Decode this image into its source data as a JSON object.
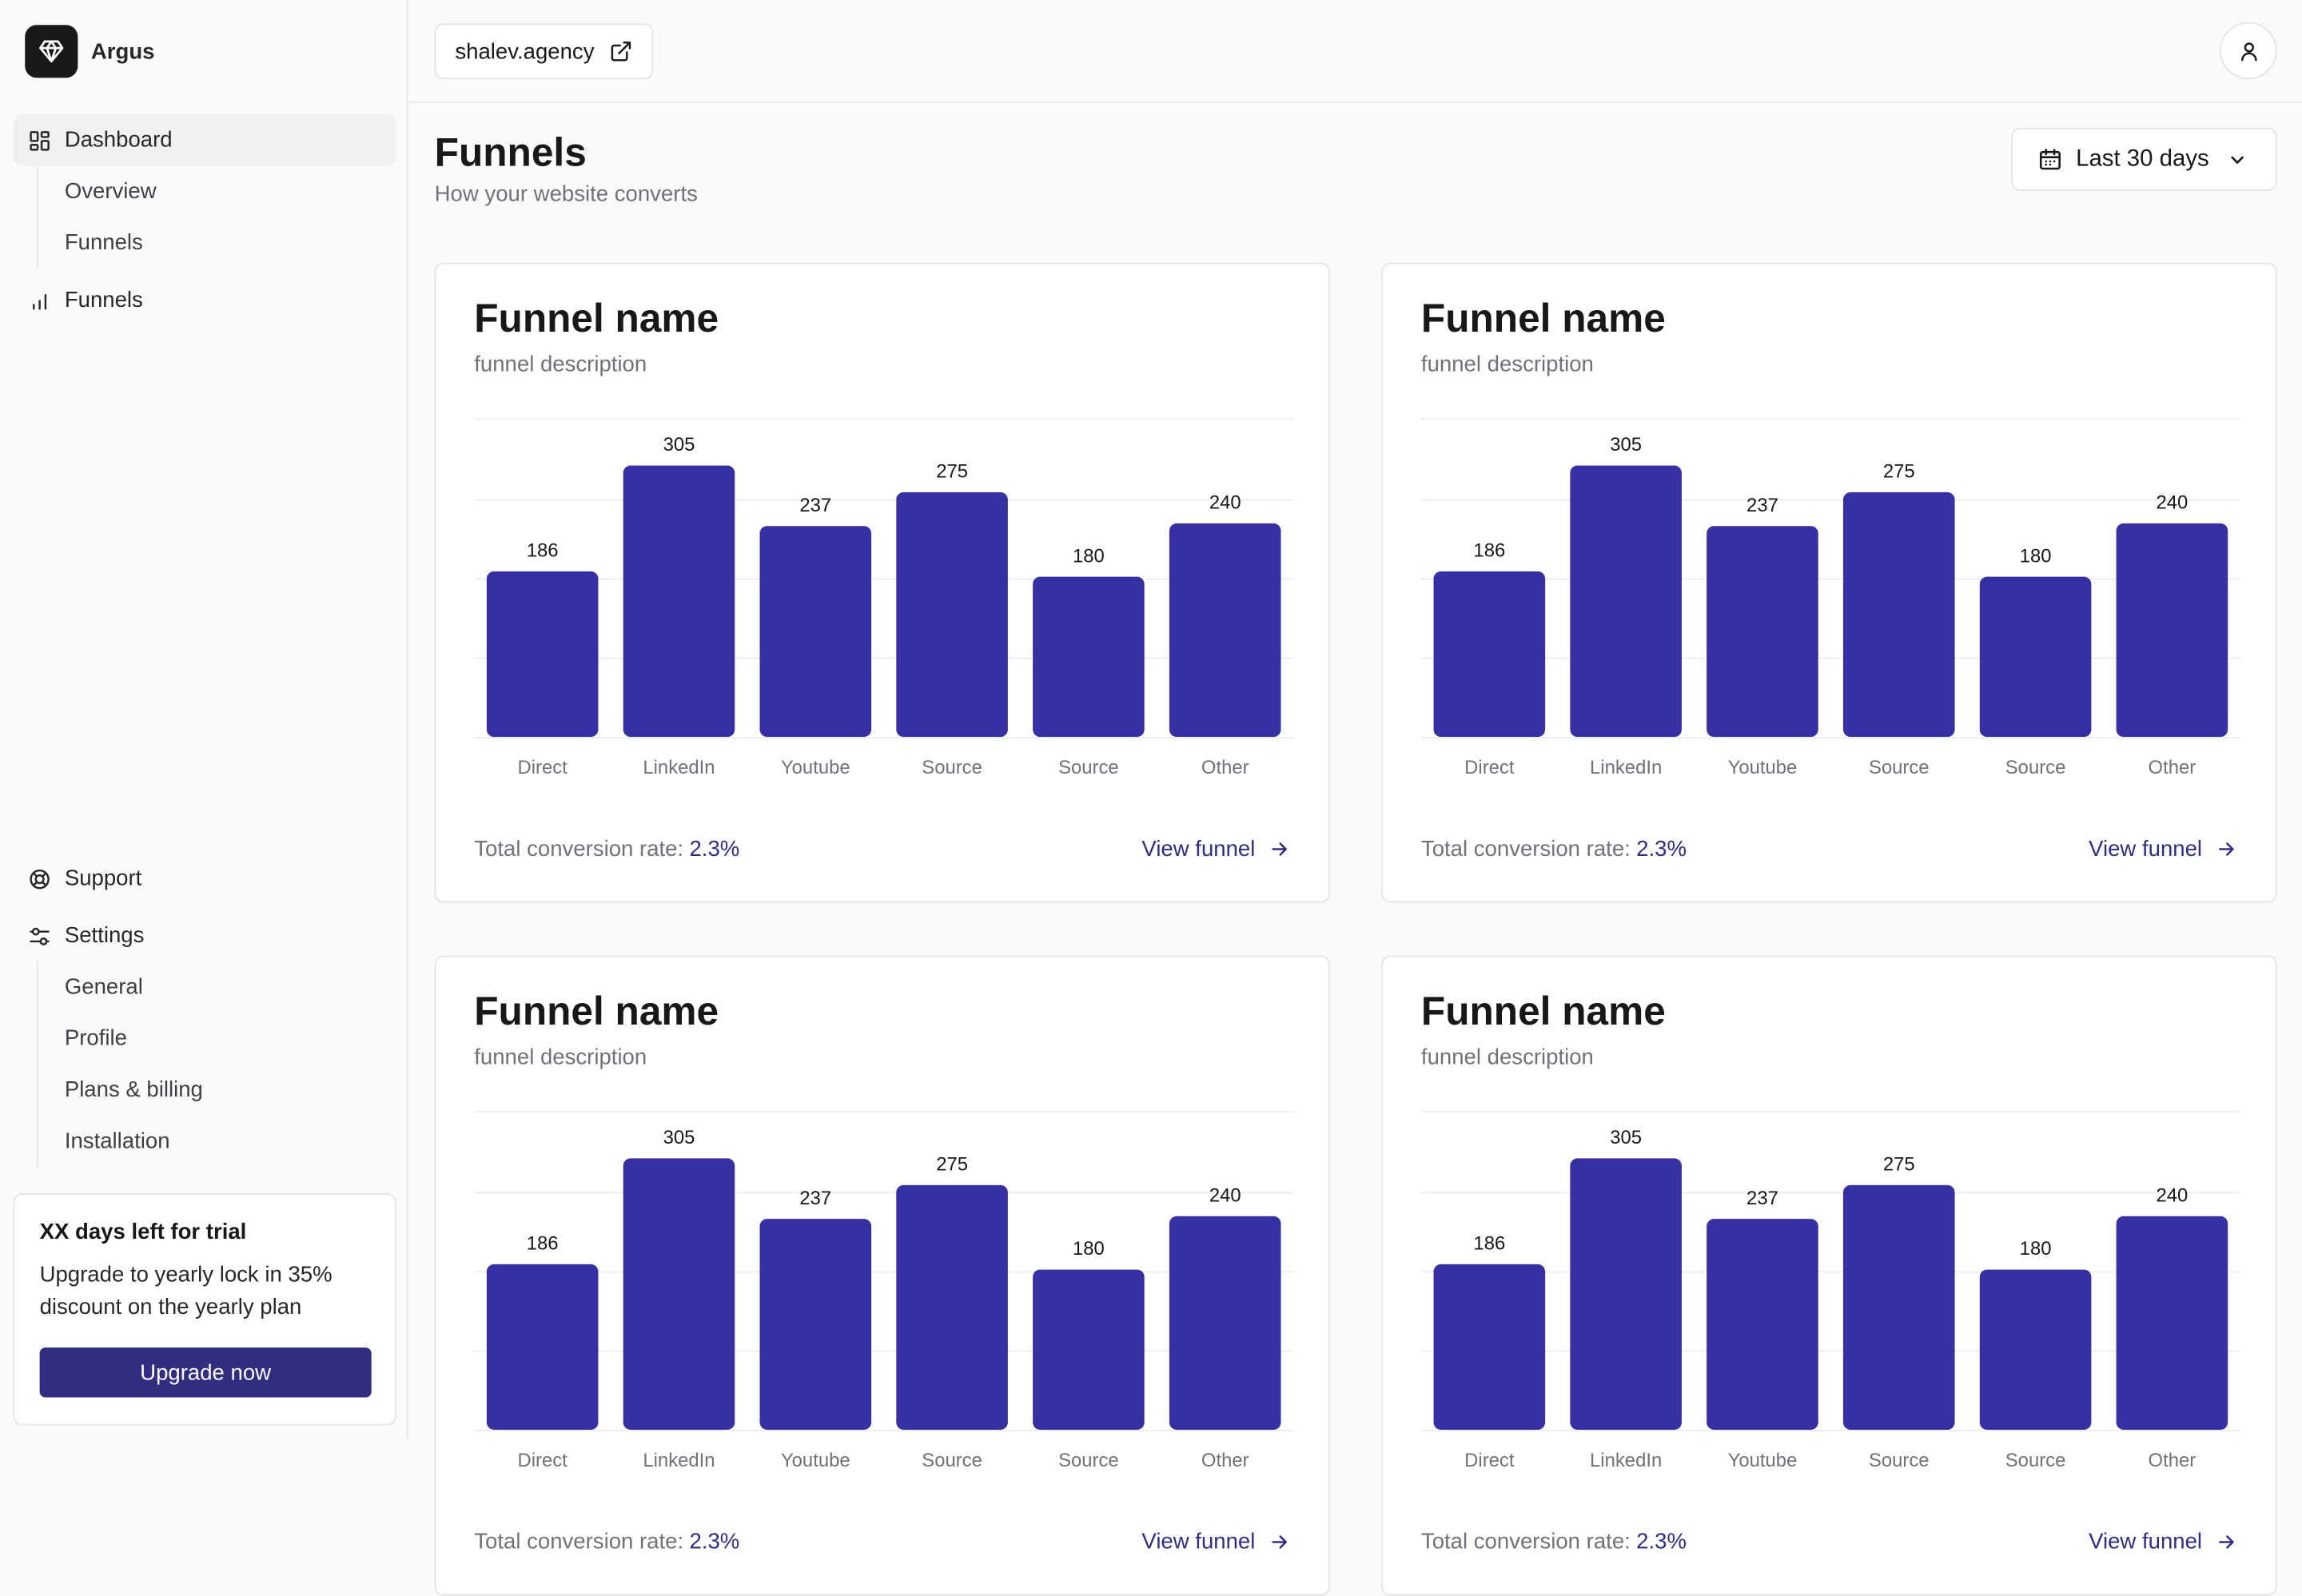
{
  "brand": {
    "name": "Argus"
  },
  "sidebar": {
    "dashboard": {
      "label": "Dashboard",
      "children": [
        "Overview",
        "Funnels"
      ]
    },
    "funnels": {
      "label": "Funnels"
    },
    "support": {
      "label": "Support"
    },
    "settings": {
      "label": "Settings",
      "children": [
        "General",
        "Profile",
        "Plans & billing",
        "Installation"
      ]
    }
  },
  "trial": {
    "title": "XX days left for trial",
    "text": "Upgrade to yearly lock in 35% discount on the yearly plan",
    "button": "Upgrade now"
  },
  "topbar": {
    "site": "shalev.agency"
  },
  "page": {
    "title": "Funnels",
    "subtitle": "How your website converts"
  },
  "date_range": {
    "label": "Last 30 days"
  },
  "colors": {
    "bar": "#3730a3",
    "accent": "#312e81"
  },
  "cards": [
    {
      "title": "Funnel name",
      "description": "funnel description",
      "conversion_label": "Total conversion rate:",
      "conversion_value": "2.3%",
      "link": "View funnel"
    },
    {
      "title": "Funnel name",
      "description": "funnel description",
      "conversion_label": "Total conversion rate:",
      "conversion_value": "2.3%",
      "link": "View funnel"
    },
    {
      "title": "Funnel name",
      "description": "funnel description",
      "conversion_label": "Total conversion rate:",
      "conversion_value": "2.3%",
      "link": "View funnel"
    },
    {
      "title": "Funnel name",
      "description": "funnel description",
      "conversion_label": "Total conversion rate:",
      "conversion_value": "2.3%",
      "link": "View funnel"
    }
  ],
  "chart_data": {
    "type": "bar",
    "categories": [
      "Direct",
      "LinkedIn",
      "Youtube",
      "Source",
      "Source",
      "Other"
    ],
    "values": [
      186,
      305,
      237,
      275,
      180,
      240
    ],
    "ylim": [
      0,
      330
    ],
    "grid": true,
    "data_labels": true
  }
}
